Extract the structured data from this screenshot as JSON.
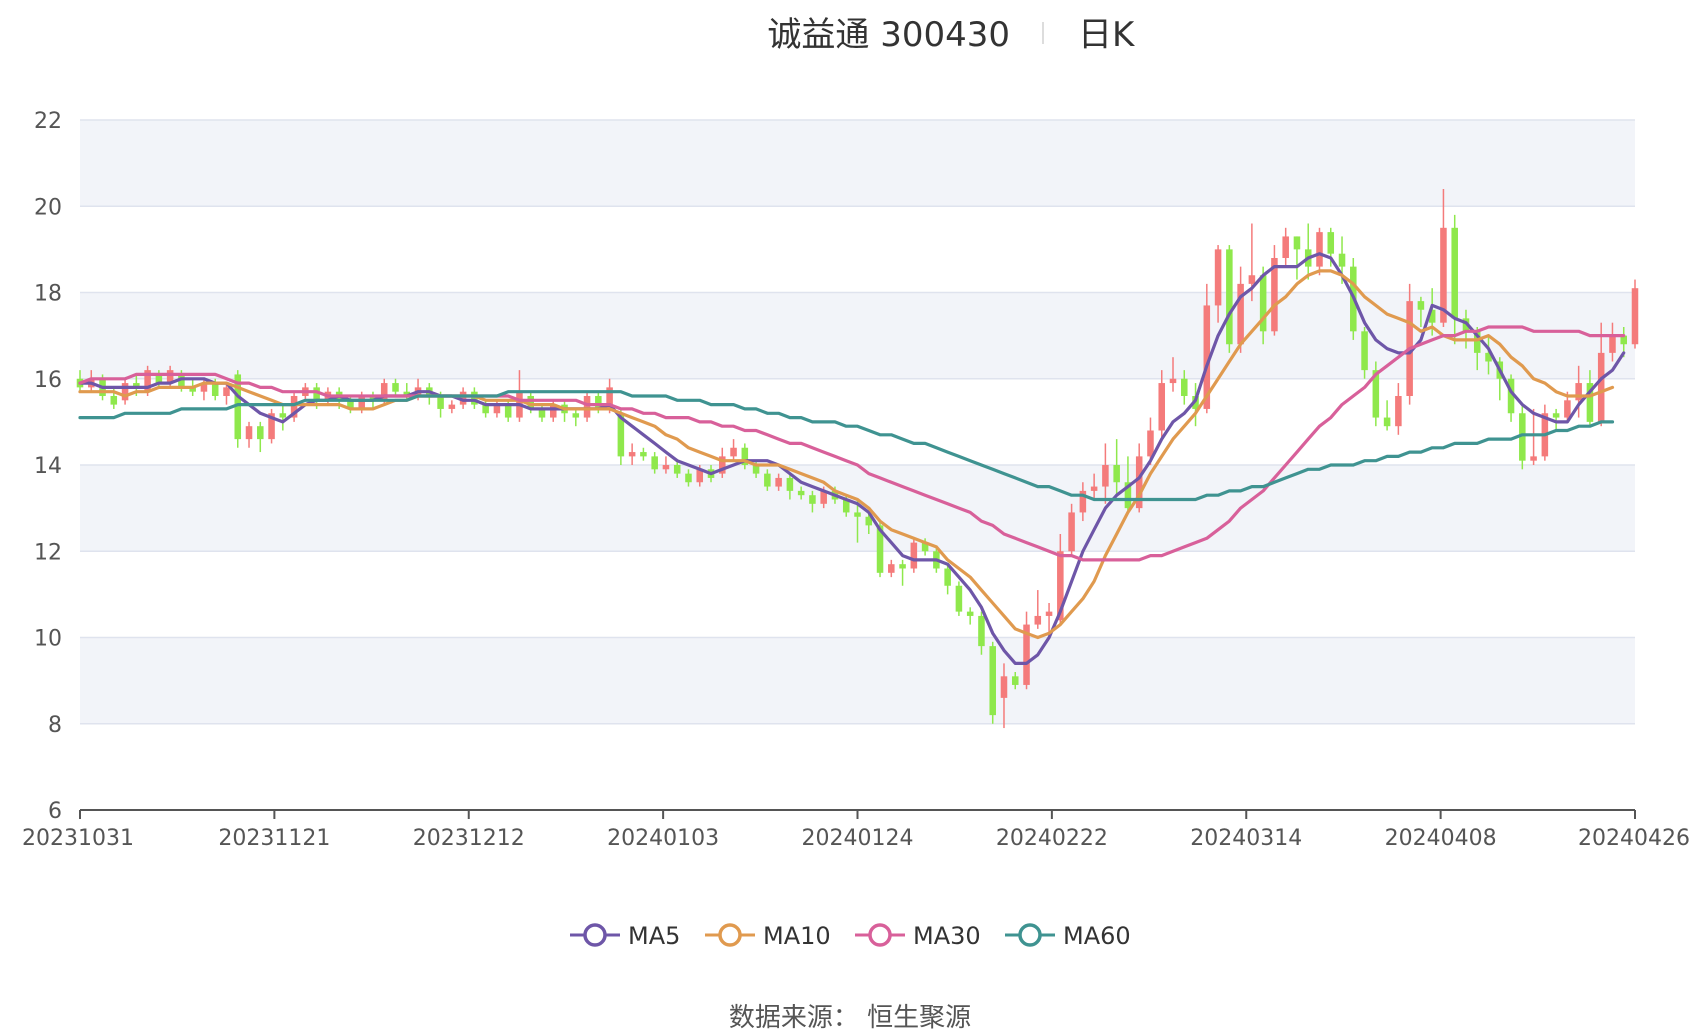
{
  "source": "数据来源：  恒生聚源",
  "chart_data": {
    "type": "candlestick",
    "title": "诚益通 300430",
    "period": "日K",
    "ylim": [
      6,
      22
    ],
    "yticks": [
      6,
      8,
      10,
      12,
      14,
      16,
      18,
      20,
      22
    ],
    "x_tick_labels": [
      "20231031",
      "20231121",
      "20231212",
      "20240103",
      "20240124",
      "20240222",
      "20240314",
      "20240408",
      "20240426"
    ],
    "legend": [
      {
        "name": "MA5",
        "color": "#6e56a8"
      },
      {
        "name": "MA10",
        "color": "#e09a4f"
      },
      {
        "name": "MA30",
        "color": "#d8609a"
      },
      {
        "name": "MA60",
        "color": "#3f9391"
      }
    ],
    "colors": {
      "up": "#f47b7b",
      "down": "#8fe84c",
      "band": "#f2f4f9",
      "grid": "#dfe3ee"
    },
    "ohlc": [
      [
        16.0,
        15.8,
        16.2,
        15.7
      ],
      [
        15.8,
        16.0,
        16.2,
        15.7
      ],
      [
        16.0,
        15.6,
        16.1,
        15.5
      ],
      [
        15.6,
        15.4,
        15.8,
        15.3
      ],
      [
        15.5,
        15.9,
        16.0,
        15.4
      ],
      [
        15.9,
        15.8,
        16.1,
        15.6
      ],
      [
        15.7,
        16.2,
        16.3,
        15.6
      ],
      [
        16.1,
        15.9,
        16.2,
        15.8
      ],
      [
        15.9,
        16.2,
        16.3,
        15.8
      ],
      [
        16.1,
        15.8,
        16.2,
        15.7
      ],
      [
        15.8,
        15.7,
        16.0,
        15.6
      ],
      [
        15.7,
        15.9,
        16.0,
        15.5
      ],
      [
        15.9,
        15.6,
        16.0,
        15.5
      ],
      [
        15.6,
        15.8,
        15.9,
        15.4
      ],
      [
        16.1,
        14.6,
        16.2,
        14.4
      ],
      [
        14.6,
        14.9,
        15.0,
        14.4
      ],
      [
        14.9,
        14.6,
        15.0,
        14.3
      ],
      [
        14.6,
        15.2,
        15.3,
        14.5
      ],
      [
        15.2,
        15.1,
        15.4,
        14.8
      ],
      [
        15.1,
        15.6,
        15.7,
        15.0
      ],
      [
        15.6,
        15.8,
        15.9,
        15.5
      ],
      [
        15.8,
        15.5,
        15.9,
        15.3
      ],
      [
        15.5,
        15.7,
        15.8,
        15.4
      ],
      [
        15.7,
        15.5,
        15.8,
        15.3
      ],
      [
        15.5,
        15.3,
        15.6,
        15.2
      ],
      [
        15.3,
        15.6,
        15.7,
        15.2
      ],
      [
        15.6,
        15.5,
        15.7,
        15.3
      ],
      [
        15.5,
        15.9,
        16.0,
        15.4
      ],
      [
        15.9,
        15.7,
        16.0,
        15.6
      ],
      [
        15.7,
        15.6,
        15.9,
        15.5
      ],
      [
        15.6,
        15.8,
        16.0,
        15.5
      ],
      [
        15.8,
        15.6,
        15.9,
        15.4
      ],
      [
        15.6,
        15.3,
        15.7,
        15.1
      ],
      [
        15.3,
        15.4,
        15.5,
        15.2
      ],
      [
        15.4,
        15.7,
        15.8,
        15.3
      ],
      [
        15.7,
        15.4,
        15.8,
        15.3
      ],
      [
        15.4,
        15.2,
        15.5,
        15.1
      ],
      [
        15.2,
        15.4,
        15.5,
        15.1
      ],
      [
        15.4,
        15.1,
        15.5,
        15.0
      ],
      [
        15.1,
        15.7,
        16.2,
        15.0
      ],
      [
        15.6,
        15.3,
        15.7,
        15.2
      ],
      [
        15.3,
        15.1,
        15.4,
        15.0
      ],
      [
        15.1,
        15.4,
        15.5,
        15.0
      ],
      [
        15.4,
        15.2,
        15.5,
        15.0
      ],
      [
        15.2,
        15.1,
        15.3,
        14.9
      ],
      [
        15.1,
        15.6,
        15.7,
        15.0
      ],
      [
        15.6,
        15.3,
        15.7,
        15.2
      ],
      [
        15.3,
        15.8,
        16.0,
        15.2
      ],
      [
        15.2,
        14.2,
        15.3,
        14.0
      ],
      [
        14.2,
        14.3,
        14.5,
        14.0
      ],
      [
        14.3,
        14.2,
        14.4,
        14.1
      ],
      [
        14.2,
        13.9,
        14.3,
        13.8
      ],
      [
        13.9,
        14.0,
        14.2,
        13.8
      ],
      [
        14.0,
        13.8,
        14.1,
        13.7
      ],
      [
        13.8,
        13.6,
        13.9,
        13.5
      ],
      [
        13.6,
        13.9,
        14.0,
        13.5
      ],
      [
        13.9,
        13.7,
        14.0,
        13.6
      ],
      [
        13.8,
        14.2,
        14.4,
        13.7
      ],
      [
        14.2,
        14.4,
        14.6,
        14.1
      ],
      [
        14.4,
        14.0,
        14.5,
        13.9
      ],
      [
        14.0,
        13.8,
        14.1,
        13.7
      ],
      [
        13.8,
        13.5,
        13.9,
        13.4
      ],
      [
        13.5,
        13.7,
        13.8,
        13.4
      ],
      [
        13.7,
        13.4,
        13.8,
        13.2
      ],
      [
        13.4,
        13.3,
        13.5,
        13.2
      ],
      [
        13.3,
        13.1,
        13.4,
        12.9
      ],
      [
        13.1,
        13.4,
        13.5,
        13.0
      ],
      [
        13.4,
        13.2,
        13.5,
        13.1
      ],
      [
        13.2,
        12.9,
        13.3,
        12.8
      ],
      [
        12.9,
        12.8,
        13.2,
        12.2
      ],
      [
        12.8,
        12.6,
        12.9,
        12.4
      ],
      [
        12.6,
        11.5,
        12.7,
        11.4
      ],
      [
        11.5,
        11.7,
        11.8,
        11.4
      ],
      [
        11.7,
        11.6,
        11.8,
        11.2
      ],
      [
        11.6,
        12.2,
        12.3,
        11.5
      ],
      [
        12.2,
        12.0,
        12.3,
        11.9
      ],
      [
        12.0,
        11.6,
        12.1,
        11.5
      ],
      [
        11.6,
        11.2,
        11.7,
        11.0
      ],
      [
        11.2,
        10.6,
        11.3,
        10.5
      ],
      [
        10.6,
        10.5,
        10.7,
        10.3
      ],
      [
        10.5,
        9.8,
        10.6,
        9.6
      ],
      [
        9.8,
        8.2,
        9.9,
        8.0
      ],
      [
        8.6,
        9.1,
        9.4,
        7.9
      ],
      [
        9.1,
        8.9,
        9.2,
        8.8
      ],
      [
        8.9,
        10.3,
        10.6,
        8.8
      ],
      [
        10.3,
        10.5,
        11.1,
        10.2
      ],
      [
        10.5,
        10.6,
        10.8,
        10.1
      ],
      [
        10.4,
        12.0,
        12.4,
        10.3
      ],
      [
        12.0,
        12.9,
        13.1,
        11.9
      ],
      [
        12.9,
        13.4,
        13.6,
        12.7
      ],
      [
        13.4,
        13.5,
        13.8,
        13.2
      ],
      [
        13.5,
        14.0,
        14.5,
        13.1
      ],
      [
        14.0,
        13.6,
        14.6,
        13.3
      ],
      [
        13.6,
        13.0,
        14.2,
        12.9
      ],
      [
        13.0,
        14.2,
        14.5,
        12.9
      ],
      [
        14.2,
        14.8,
        15.1,
        14.0
      ],
      [
        14.8,
        15.9,
        16.2,
        14.6
      ],
      [
        15.9,
        16.0,
        16.5,
        15.7
      ],
      [
        16.0,
        15.6,
        16.2,
        15.4
      ],
      [
        15.6,
        15.3,
        15.9,
        14.9
      ],
      [
        15.3,
        17.7,
        18.2,
        15.2
      ],
      [
        17.7,
        19.0,
        19.1,
        17.3
      ],
      [
        19.0,
        16.8,
        19.1,
        16.6
      ],
      [
        16.8,
        18.2,
        18.6,
        16.6
      ],
      [
        18.2,
        18.4,
        19.6,
        17.8
      ],
      [
        18.4,
        17.1,
        18.6,
        16.8
      ],
      [
        17.1,
        18.8,
        19.1,
        17.0
      ],
      [
        18.8,
        19.3,
        19.5,
        18.6
      ],
      [
        19.3,
        19.0,
        19.3,
        18.3
      ],
      [
        19.0,
        18.6,
        19.6,
        18.3
      ],
      [
        18.6,
        19.4,
        19.5,
        18.4
      ],
      [
        19.4,
        18.9,
        19.5,
        18.6
      ],
      [
        18.9,
        18.6,
        19.3,
        18.2
      ],
      [
        18.6,
        17.1,
        18.8,
        16.9
      ],
      [
        17.1,
        16.2,
        17.2,
        16.0
      ],
      [
        16.2,
        15.1,
        16.4,
        14.9
      ],
      [
        15.1,
        14.9,
        15.5,
        14.8
      ],
      [
        14.9,
        15.6,
        15.9,
        14.7
      ],
      [
        15.6,
        17.8,
        18.2,
        15.4
      ],
      [
        17.8,
        17.6,
        17.9,
        17.2
      ],
      [
        17.6,
        17.3,
        18.1,
        17.0
      ],
      [
        17.3,
        19.5,
        20.4,
        17.2
      ],
      [
        19.5,
        17.4,
        19.8,
        16.8
      ],
      [
        17.4,
        17.1,
        17.6,
        16.7
      ],
      [
        17.1,
        16.6,
        17.2,
        16.2
      ],
      [
        16.6,
        16.4,
        17.0,
        16.1
      ],
      [
        16.4,
        16.0,
        16.5,
        15.5
      ],
      [
        16.0,
        15.2,
        16.1,
        15.0
      ],
      [
        15.2,
        14.1,
        15.4,
        13.9
      ],
      [
        14.1,
        14.2,
        15.3,
        14.0
      ],
      [
        14.2,
        15.2,
        15.4,
        14.1
      ],
      [
        15.2,
        15.1,
        15.3,
        14.8
      ],
      [
        15.1,
        15.5,
        15.7,
        15.0
      ],
      [
        15.5,
        15.9,
        16.3,
        15.1
      ],
      [
        15.9,
        15.0,
        16.2,
        14.9
      ],
      [
        15.0,
        16.6,
        17.3,
        14.9
      ],
      [
        16.6,
        17.0,
        17.3,
        16.4
      ],
      [
        17.0,
        16.8,
        17.2,
        16.5
      ],
      [
        16.8,
        18.1,
        18.3,
        16.7
      ]
    ],
    "ma5": [
      15.9,
      15.9,
      15.8,
      15.8,
      15.8,
      15.8,
      15.8,
      15.9,
      15.9,
      16.0,
      16.0,
      16.0,
      15.9,
      15.9,
      15.6,
      15.4,
      15.2,
      15.1,
      15.0,
      15.2,
      15.4,
      15.5,
      15.5,
      15.6,
      15.5,
      15.5,
      15.5,
      15.6,
      15.6,
      15.6,
      15.7,
      15.7,
      15.6,
      15.6,
      15.5,
      15.5,
      15.4,
      15.4,
      15.4,
      15.4,
      15.3,
      15.3,
      15.3,
      15.3,
      15.3,
      15.3,
      15.3,
      15.4,
      15.1,
      14.9,
      14.7,
      14.5,
      14.3,
      14.1,
      14.0,
      13.9,
      13.8,
      13.9,
      14.0,
      14.1,
      14.1,
      14.1,
      14.0,
      13.8,
      13.6,
      13.5,
      13.4,
      13.3,
      13.2,
      13.1,
      12.9,
      12.5,
      12.2,
      11.9,
      11.8,
      11.8,
      11.8,
      11.7,
      11.4,
      11.1,
      10.7,
      10.1,
      9.7,
      9.4,
      9.4,
      9.6,
      10.0,
      10.6,
      11.3,
      12.0,
      12.5,
      13.0,
      13.3,
      13.5,
      13.7,
      14.1,
      14.6,
      15.0,
      15.2,
      15.5,
      16.3,
      17.0,
      17.5,
      17.9,
      18.1,
      18.4,
      18.6,
      18.6,
      18.6,
      18.8,
      18.9,
      18.8,
      18.4,
      17.9,
      17.3,
      16.9,
      16.7,
      16.6,
      16.6,
      16.9,
      17.7,
      17.6,
      17.4,
      17.3,
      17.0,
      16.7,
      16.2,
      15.7,
      15.4,
      15.2,
      15.1,
      15.0,
      15.0,
      15.4,
      15.7,
      16.0,
      16.2,
      16.6
    ],
    "ma10": [
      15.7,
      15.7,
      15.7,
      15.7,
      15.6,
      15.7,
      15.7,
      15.8,
      15.8,
      15.8,
      15.8,
      15.9,
      15.9,
      15.9,
      15.8,
      15.7,
      15.6,
      15.5,
      15.4,
      15.4,
      15.4,
      15.4,
      15.4,
      15.4,
      15.3,
      15.3,
      15.3,
      15.4,
      15.5,
      15.5,
      15.6,
      15.6,
      15.6,
      15.6,
      15.6,
      15.6,
      15.5,
      15.5,
      15.5,
      15.5,
      15.4,
      15.4,
      15.4,
      15.3,
      15.3,
      15.3,
      15.3,
      15.3,
      15.2,
      15.1,
      15.0,
      14.9,
      14.7,
      14.6,
      14.4,
      14.3,
      14.2,
      14.1,
      14.1,
      14.1,
      14.0,
      14.0,
      14.0,
      13.9,
      13.8,
      13.7,
      13.6,
      13.4,
      13.3,
      13.2,
      13.0,
      12.7,
      12.5,
      12.4,
      12.3,
      12.2,
      12.1,
      11.8,
      11.6,
      11.4,
      11.1,
      10.8,
      10.5,
      10.2,
      10.1,
      10.0,
      10.1,
      10.3,
      10.6,
      10.9,
      11.3,
      11.9,
      12.4,
      12.9,
      13.3,
      13.8,
      14.2,
      14.6,
      14.9,
      15.2,
      15.6,
      16.0,
      16.4,
      16.8,
      17.1,
      17.4,
      17.7,
      17.9,
      18.2,
      18.4,
      18.5,
      18.5,
      18.4,
      18.2,
      17.9,
      17.7,
      17.5,
      17.4,
      17.3,
      17.1,
      17.2,
      17.0,
      16.9,
      16.9,
      16.9,
      17.0,
      16.8,
      16.5,
      16.3,
      16.0,
      15.9,
      15.7,
      15.6,
      15.6,
      15.6,
      15.7,
      15.8
    ],
    "ma30": [
      15.9,
      16.0,
      16.0,
      16.0,
      16.0,
      16.1,
      16.1,
      16.1,
      16.1,
      16.1,
      16.1,
      16.1,
      16.1,
      16.0,
      15.9,
      15.9,
      15.8,
      15.8,
      15.7,
      15.7,
      15.7,
      15.7,
      15.6,
      15.6,
      15.6,
      15.6,
      15.6,
      15.6,
      15.6,
      15.6,
      15.6,
      15.6,
      15.6,
      15.6,
      15.6,
      15.6,
      15.6,
      15.6,
      15.6,
      15.5,
      15.5,
      15.5,
      15.5,
      15.5,
      15.5,
      15.4,
      15.4,
      15.4,
      15.3,
      15.3,
      15.2,
      15.2,
      15.1,
      15.1,
      15.1,
      15.0,
      15.0,
      14.9,
      14.9,
      14.8,
      14.8,
      14.7,
      14.6,
      14.5,
      14.5,
      14.4,
      14.3,
      14.2,
      14.1,
      14.0,
      13.8,
      13.7,
      13.6,
      13.5,
      13.4,
      13.3,
      13.2,
      13.1,
      13.0,
      12.9,
      12.7,
      12.6,
      12.4,
      12.3,
      12.2,
      12.1,
      12.0,
      11.9,
      11.9,
      11.8,
      11.8,
      11.8,
      11.8,
      11.8,
      11.8,
      11.9,
      11.9,
      12.0,
      12.1,
      12.2,
      12.3,
      12.5,
      12.7,
      13.0,
      13.2,
      13.4,
      13.7,
      14.0,
      14.3,
      14.6,
      14.9,
      15.1,
      15.4,
      15.6,
      15.8,
      16.1,
      16.3,
      16.5,
      16.7,
      16.8,
      16.9,
      17.0,
      17.0,
      17.1,
      17.1,
      17.2,
      17.2,
      17.2,
      17.2,
      17.1,
      17.1,
      17.1,
      17.1,
      17.1,
      17.0,
      17.0,
      17.0,
      17.0
    ],
    "ma60": [
      15.1,
      15.1,
      15.1,
      15.1,
      15.2,
      15.2,
      15.2,
      15.2,
      15.2,
      15.3,
      15.3,
      15.3,
      15.3,
      15.3,
      15.4,
      15.4,
      15.4,
      15.4,
      15.4,
      15.4,
      15.5,
      15.5,
      15.5,
      15.5,
      15.5,
      15.5,
      15.5,
      15.5,
      15.5,
      15.5,
      15.6,
      15.6,
      15.6,
      15.6,
      15.6,
      15.6,
      15.6,
      15.6,
      15.7,
      15.7,
      15.7,
      15.7,
      15.7,
      15.7,
      15.7,
      15.7,
      15.7,
      15.7,
      15.7,
      15.6,
      15.6,
      15.6,
      15.6,
      15.5,
      15.5,
      15.5,
      15.4,
      15.4,
      15.4,
      15.3,
      15.3,
      15.2,
      15.2,
      15.1,
      15.1,
      15.0,
      15.0,
      15.0,
      14.9,
      14.9,
      14.8,
      14.7,
      14.7,
      14.6,
      14.5,
      14.5,
      14.4,
      14.3,
      14.2,
      14.1,
      14.0,
      13.9,
      13.8,
      13.7,
      13.6,
      13.5,
      13.5,
      13.4,
      13.3,
      13.3,
      13.2,
      13.2,
      13.2,
      13.2,
      13.2,
      13.2,
      13.2,
      13.2,
      13.2,
      13.2,
      13.3,
      13.3,
      13.4,
      13.4,
      13.5,
      13.5,
      13.6,
      13.7,
      13.8,
      13.9,
      13.9,
      14.0,
      14.0,
      14.0,
      14.1,
      14.1,
      14.2,
      14.2,
      14.3,
      14.3,
      14.4,
      14.4,
      14.5,
      14.5,
      14.5,
      14.6,
      14.6,
      14.6,
      14.7,
      14.7,
      14.7,
      14.8,
      14.8,
      14.9,
      14.9,
      15.0,
      15.0
    ]
  }
}
